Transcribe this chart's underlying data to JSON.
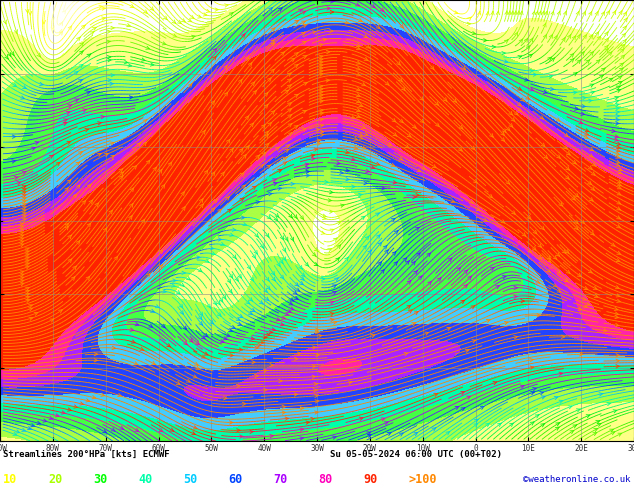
{
  "title_left": "Streamlines 200°HPa [kts] ECMWF",
  "title_right": "Su 05-05-2024 06:00 UTC (00+T02)",
  "credit": "©weatheronline.co.uk",
  "legend_values": [
    "10",
    "20",
    "30",
    "40",
    "50",
    "60",
    "70",
    "80",
    "90",
    ">100"
  ],
  "legend_colors": [
    "#ffff00",
    "#aaff00",
    "#00ff00",
    "#00ffaa",
    "#00ccff",
    "#0044ff",
    "#aa00ff",
    "#ff00bb",
    "#ff2200",
    "#ff8800"
  ],
  "bg_color": "#ffffff",
  "fig_width": 6.34,
  "fig_height": 4.9,
  "dpi": 100,
  "bottom_bar_color": "#c8c8c8",
  "credit_color": "#0000cc",
  "map_bg": "#f8f8f8",
  "speed_levels": [
    0,
    10,
    20,
    30,
    40,
    50,
    60,
    70,
    80,
    90,
    110
  ],
  "speed_colors": [
    "#ffffff",
    "#ffff88",
    "#aaff44",
    "#44ff44",
    "#00ffaa",
    "#44ccff",
    "#2244ff",
    "#aa22ff",
    "#ff22aa",
    "#ff2200",
    "#ff8800"
  ],
  "lon_min": -90,
  "lon_max": 30,
  "lat_min": 20,
  "lat_max": 80,
  "lon_step": 10,
  "lat_step": 10
}
